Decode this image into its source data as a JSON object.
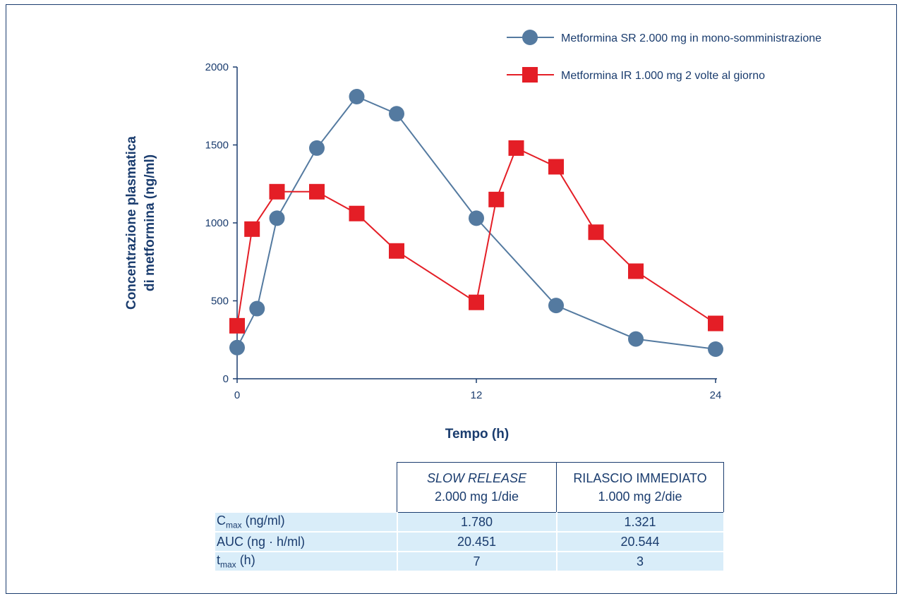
{
  "chart_data": {
    "type": "line",
    "xlabel": "Tempo (h)",
    "ylabel_lines": [
      "Concentrazione plasmatica",
      "di metformina (ng/ml)"
    ],
    "xlim": [
      0,
      24
    ],
    "ylim": [
      0,
      2000
    ],
    "x_ticks": [
      "0",
      "12",
      "24"
    ],
    "y_ticks": [
      "0",
      "500",
      "1000",
      "1500",
      "2000"
    ],
    "grid": false,
    "legend_position": "top-right",
    "series": [
      {
        "name": "Metformina SR 2.000 mg in mono-somministrazione",
        "color": "#547aa0",
        "marker": "circle",
        "x": [
          0,
          1,
          2,
          4,
          6,
          8,
          12,
          16,
          20,
          24
        ],
        "y": [
          200,
          450,
          1030,
          1480,
          1810,
          1700,
          1030,
          470,
          255,
          190
        ]
      },
      {
        "name": "Metformina IR 1.000 mg 2 volte al giorno",
        "color": "#e41e26",
        "marker": "square",
        "x": [
          0,
          0.75,
          2,
          4,
          6,
          8,
          12,
          13,
          14,
          16,
          18,
          20,
          24
        ],
        "y": [
          340,
          960,
          1200,
          1200,
          1060,
          820,
          490,
          1150,
          1480,
          1360,
          940,
          690,
          355
        ]
      }
    ]
  },
  "table": {
    "header": [
      {
        "line1": "SLOW RELEASE",
        "line2": "2.000 mg 1/die"
      },
      {
        "line1": "RILASCIO IMMEDIATO",
        "line2": "1.000 mg 2/die"
      }
    ],
    "rows": [
      {
        "label_main": "C",
        "label_sub": "max",
        "label_unit": " (ng/ml)",
        "v1": "1.780",
        "v2": "1.321"
      },
      {
        "label_main": "AUC (ng · h/ml)",
        "label_sub": "",
        "label_unit": "",
        "v1": "20.451",
        "v2": "20.544"
      },
      {
        "label_main": "t",
        "label_sub": "max",
        "label_unit": " (h)",
        "v1": "7",
        "v2": "3"
      }
    ]
  }
}
